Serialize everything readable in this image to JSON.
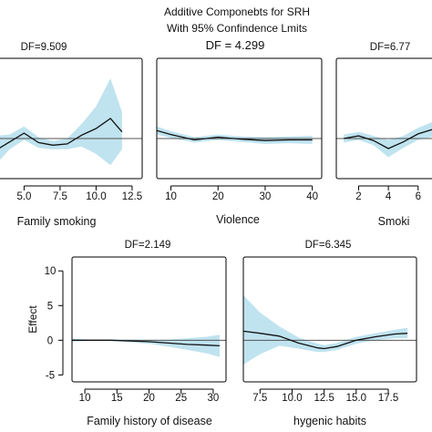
{
  "figure": {
    "title_line1": "Additive Componebts for SRH",
    "title_line2": "With 95% Confindence Lmits"
  },
  "colors": {
    "band": "#bfe3ef",
    "curve": "#111111",
    "frame": "#000000",
    "zero_line": "#555555"
  },
  "chart_data": [
    {
      "type": "line",
      "df_label": "DF=9.509",
      "xlabel": "Family smoking",
      "ylabel": "",
      "xticks": [
        "5.0",
        "7.5",
        "10.0",
        "12.5"
      ],
      "xlim": [
        3.2,
        13.2
      ],
      "ylim": [
        -6,
        12
      ],
      "x": [
        3.0,
        4.0,
        5.0,
        6.0,
        7.0,
        8.0,
        9.0,
        10.0,
        11.0,
        11.8
      ],
      "y": [
        -1.8,
        -0.5,
        0.8,
        -0.6,
        -1.0,
        -0.8,
        0.5,
        1.5,
        3.0,
        1.0
      ],
      "lower": [
        -4.0,
        -1.6,
        -0.2,
        -1.4,
        -1.6,
        -1.6,
        -1.2,
        -2.3,
        -4.0,
        -1.6
      ],
      "upper": [
        0.4,
        0.6,
        1.8,
        0.2,
        -0.4,
        0.0,
        2.2,
        4.8,
        9.0,
        4.0
      ]
    },
    {
      "type": "line",
      "df_label": "DF = 4.299",
      "xlabel": "Violence",
      "ylabel": "",
      "xticks": [
        "10",
        "20",
        "30",
        "40"
      ],
      "xlim": [
        7,
        42
      ],
      "ylim": [
        -6,
        12
      ],
      "x": [
        7,
        10,
        15,
        20,
        25,
        30,
        35,
        40
      ],
      "y": [
        1.2,
        0.6,
        -0.2,
        0.2,
        -0.1,
        -0.3,
        -0.2,
        -0.2
      ],
      "lower": [
        0.6,
        0.1,
        -0.6,
        -0.2,
        -0.5,
        -0.8,
        -0.7,
        -0.8
      ],
      "upper": [
        1.8,
        1.1,
        0.2,
        0.6,
        0.3,
        0.2,
        0.3,
        0.4
      ]
    },
    {
      "type": "line",
      "df_label": "DF=6.77",
      "xlabel": "Smoki",
      "ylabel": "",
      "xticks": [
        "2",
        "4",
        "6"
      ],
      "xlim": [
        0.5,
        7.3
      ],
      "ylim": [
        -6,
        12
      ],
      "x": [
        1,
        2,
        3,
        4,
        5,
        6,
        7.3
      ],
      "y": [
        0.0,
        0.4,
        -0.3,
        -1.5,
        -0.5,
        0.7,
        1.6
      ],
      "lower": [
        -0.6,
        -0.2,
        -1.0,
        -2.8,
        -1.4,
        -0.2,
        0.4
      ],
      "upper": [
        0.6,
        1.0,
        0.4,
        -0.2,
        0.4,
        1.6,
        2.8
      ]
    },
    {
      "type": "line",
      "df_label": "DF=2.149",
      "xlabel": "Family history of disease",
      "ylabel": "Effect",
      "xticks": [
        "10",
        "15",
        "20",
        "25",
        "30"
      ],
      "yticks": [
        "10",
        "5",
        "0",
        "-5"
      ],
      "xlim": [
        8,
        32
      ],
      "ylim": [
        -6,
        12
      ],
      "x": [
        8,
        11,
        14,
        17,
        20,
        23,
        26,
        29,
        31
      ],
      "y": [
        0.0,
        0.0,
        0.0,
        -0.1,
        -0.2,
        -0.4,
        -0.6,
        -0.7,
        -0.8
      ],
      "lower": [
        -0.2,
        -0.1,
        -0.1,
        -0.3,
        -0.5,
        -0.9,
        -1.4,
        -1.9,
        -2.4
      ],
      "upper": [
        0.2,
        0.1,
        0.1,
        0.1,
        0.1,
        0.1,
        0.3,
        0.5,
        0.8
      ]
    },
    {
      "type": "line",
      "df_label": "DF=6.345",
      "xlabel": "hygenic habits",
      "ylabel": "",
      "xticks": [
        "7.5",
        "10.0",
        "12.5",
        "15.0",
        "17.5"
      ],
      "xlim": [
        6.2,
        19.7
      ],
      "ylim": [
        -6,
        12
      ],
      "x": [
        6.2,
        7.5,
        9.0,
        10.5,
        12.0,
        12.5,
        13.5,
        15.0,
        16.5,
        18.0,
        19.0
      ],
      "y": [
        1.3,
        1.0,
        0.6,
        -0.4,
        -1.1,
        -1.2,
        -0.9,
        0.0,
        0.5,
        0.9,
        1.0
      ],
      "lower": [
        -3.5,
        -2.0,
        -0.8,
        -1.2,
        -1.7,
        -1.7,
        -1.4,
        -0.5,
        0.0,
        0.3,
        0.3
      ],
      "upper": [
        6.5,
        4.0,
        2.0,
        0.4,
        -0.5,
        -0.7,
        -0.4,
        0.5,
        1.0,
        1.5,
        1.8
      ]
    }
  ]
}
